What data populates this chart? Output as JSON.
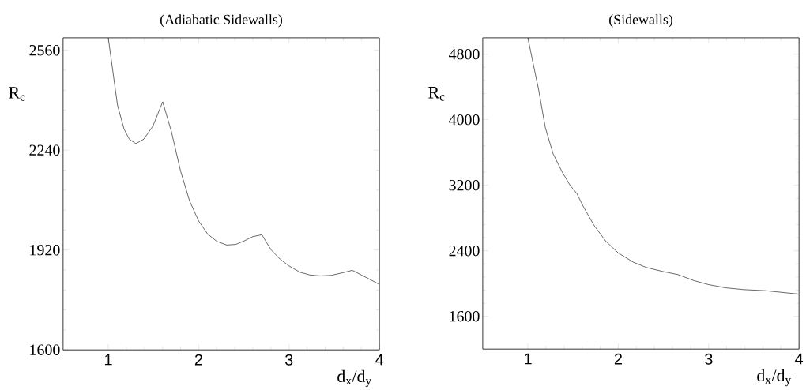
{
  "chart_data": [
    {
      "type": "line",
      "title": "(Adiabatic Sidewalls)",
      "xlabel": "d$_{x}$/d$_{y}$",
      "ylabel": "R$_{c}$",
      "xlim": [
        0.5,
        4
      ],
      "ylim": [
        1600,
        2600
      ],
      "xticks": [
        1,
        2,
        3,
        4
      ],
      "yticks": [
        1600,
        1920,
        2240,
        2560
      ],
      "x": [
        1.0,
        1.058,
        1.102,
        1.174,
        1.233,
        1.305,
        1.392,
        1.494,
        1.602,
        1.698,
        1.8,
        1.9,
        2.0,
        2.1,
        2.2,
        2.31,
        2.41,
        2.51,
        2.6,
        2.7,
        2.8,
        2.9,
        3.0,
        3.12,
        3.23,
        3.35,
        3.47,
        3.59,
        3.7,
        3.82,
        4.0
      ],
      "series": [
        {
          "color": "#000000",
          "values": [
            2600,
            2477,
            2384,
            2308,
            2275,
            2261,
            2275,
            2317,
            2395,
            2300,
            2173,
            2077,
            2013,
            1971,
            1948,
            1936,
            1938,
            1950,
            1963,
            1969,
            1921,
            1891,
            1869,
            1849,
            1840,
            1837,
            1839,
            1847,
            1855,
            1837,
            1810
          ]
        }
      ]
    },
    {
      "type": "line",
      "title": "(Sidewalls)",
      "xlabel": "d$_{x}$/d$_{y}$",
      "ylabel": "R$_{c}$",
      "xlim": [
        0.5,
        4
      ],
      "ylim": [
        1200,
        5000
      ],
      "xticks": [
        1,
        2,
        3,
        4
      ],
      "yticks": [
        1600,
        2400,
        3200,
        4000,
        4800
      ],
      "x": [
        1.0,
        1.047,
        1.12,
        1.192,
        1.279,
        1.381,
        1.468,
        1.541,
        1.614,
        1.73,
        1.86,
        2.0,
        2.166,
        2.31,
        2.49,
        2.66,
        2.84,
        3.0,
        3.19,
        3.39,
        3.63,
        3.8,
        4.0
      ],
      "series": [
        {
          "color": "#000000",
          "values": [
            5000,
            4745,
            4358,
            3906,
            3584,
            3358,
            3197,
            3100,
            2939,
            2713,
            2519,
            2374,
            2261,
            2197,
            2148,
            2110,
            2035,
            1987,
            1948,
            1926,
            1913,
            1894,
            1871
          ]
        }
      ]
    }
  ]
}
